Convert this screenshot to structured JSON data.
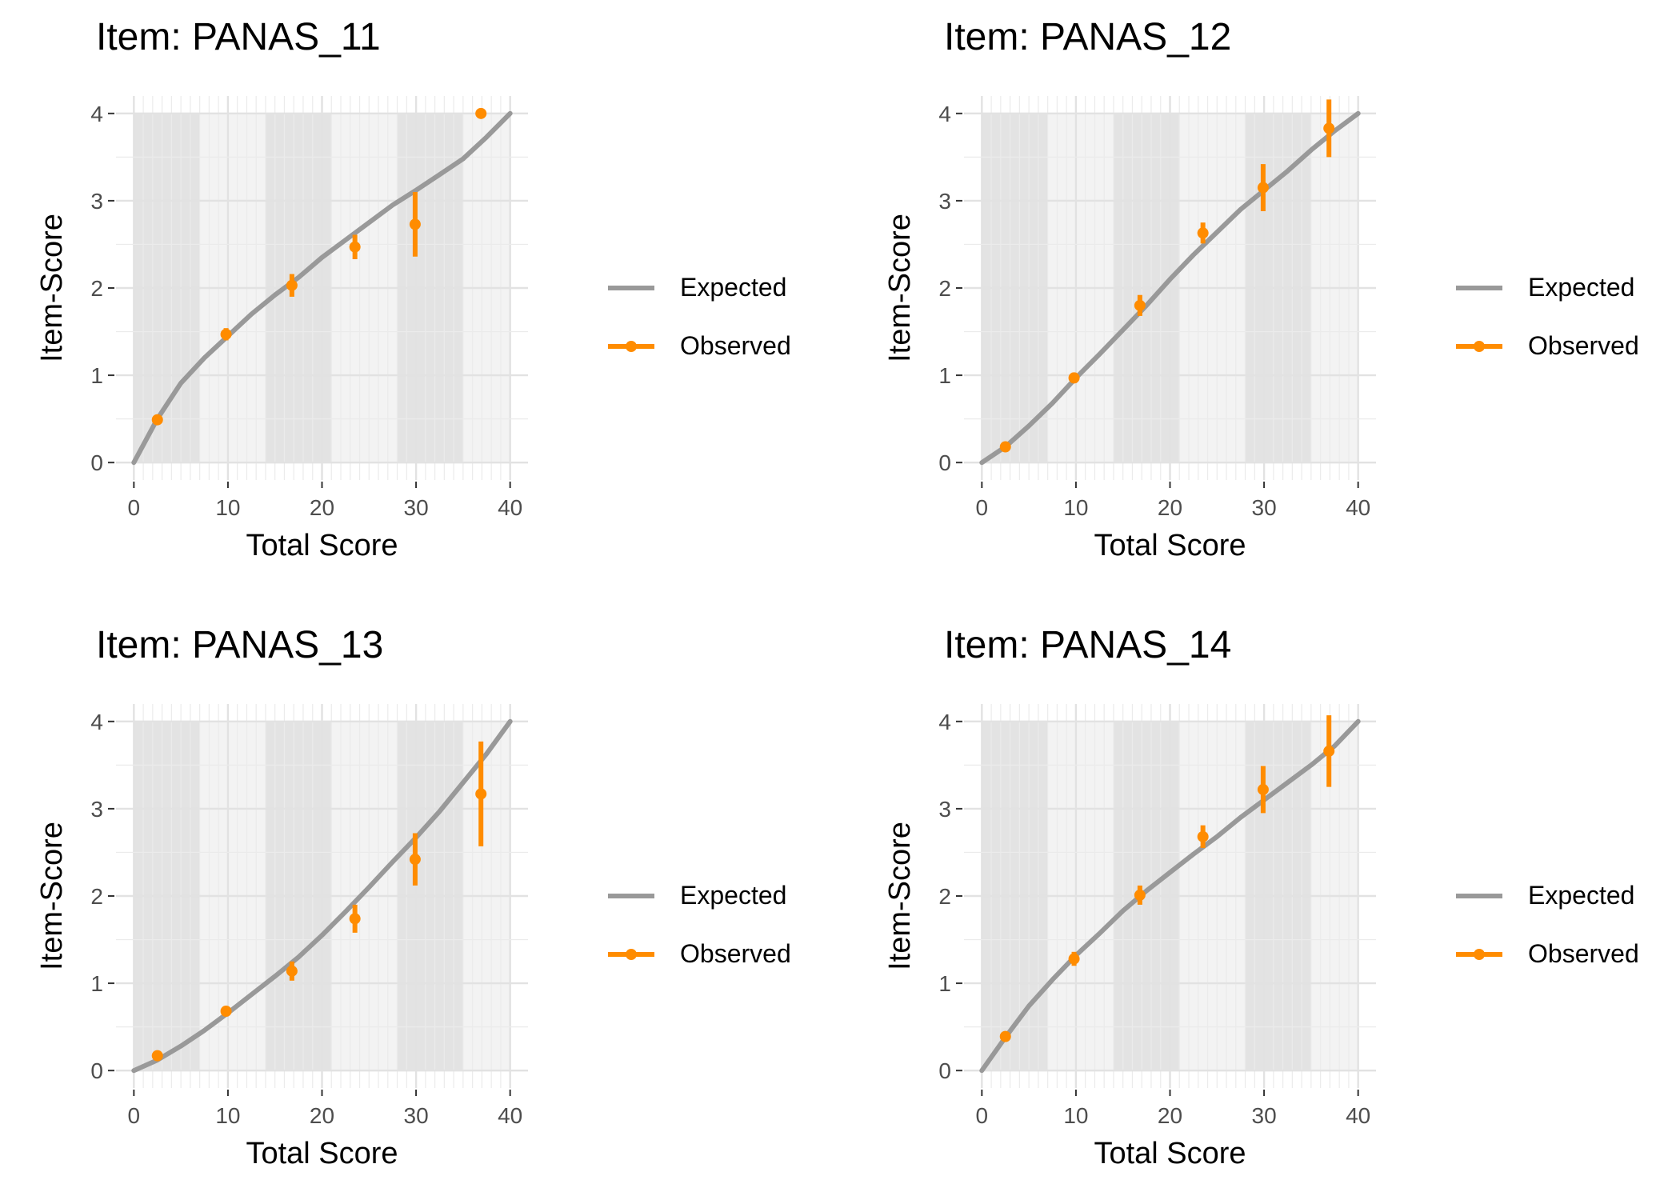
{
  "colors": {
    "expected": "#999999",
    "observed": "#FF8C00",
    "band_dark": "#E3E3E3",
    "band_light": "#F3F3F3",
    "grid": "#E6E6E6",
    "text": "#000000",
    "tick_text": "#4D4D4D"
  },
  "legend": {
    "expected_label": "Expected",
    "observed_label": "Observed"
  },
  "chart_data": [
    {
      "type": "line",
      "title": "Item: PANAS_11",
      "xlabel": "Total Score",
      "ylabel": "Item-Score",
      "xlim": [
        0,
        40
      ],
      "ylim": [
        0,
        4
      ],
      "xticks": [
        0,
        10,
        20,
        30,
        40
      ],
      "yticks": [
        0,
        1,
        2,
        3,
        4
      ],
      "bands": [
        [
          0,
          7
        ],
        [
          14,
          21
        ],
        [
          28,
          35
        ]
      ],
      "series": [
        {
          "name": "Expected",
          "kind": "line",
          "x": [
            0,
            2.5,
            5,
            7.5,
            10,
            12.5,
            15,
            17.5,
            20,
            22.5,
            25,
            27.5,
            30,
            32.5,
            35,
            37.5,
            40
          ],
          "y": [
            0,
            0.5,
            0.91,
            1.2,
            1.45,
            1.7,
            1.92,
            2.12,
            2.35,
            2.55,
            2.75,
            2.95,
            3.12,
            3.3,
            3.48,
            3.73,
            4.0
          ]
        },
        {
          "name": "Observed",
          "kind": "points",
          "x": [
            2.5,
            9.8,
            16.8,
            23.5,
            29.9,
            36.9
          ],
          "y": [
            0.49,
            1.47,
            2.03,
            2.47,
            2.73,
            4.0
          ],
          "lower": [
            0.46,
            1.4,
            1.9,
            2.33,
            2.36,
            4.0
          ],
          "upper": [
            0.52,
            1.54,
            2.16,
            2.61,
            3.1,
            4.0
          ]
        }
      ]
    },
    {
      "type": "line",
      "title": "Item: PANAS_12",
      "xlabel": "Total Score",
      "ylabel": "Item-Score",
      "xlim": [
        0,
        40
      ],
      "ylim": [
        0,
        4
      ],
      "xticks": [
        0,
        10,
        20,
        30,
        40
      ],
      "yticks": [
        0,
        1,
        2,
        3,
        4
      ],
      "bands": [
        [
          0,
          7
        ],
        [
          14,
          21
        ],
        [
          28,
          35
        ]
      ],
      "series": [
        {
          "name": "Expected",
          "kind": "line",
          "x": [
            0,
            2.5,
            5,
            7.5,
            10,
            12.5,
            15,
            17.5,
            20,
            22.5,
            25,
            27.5,
            30,
            32.5,
            35,
            37.5,
            40
          ],
          "y": [
            0,
            0.18,
            0.42,
            0.68,
            0.97,
            1.24,
            1.52,
            1.8,
            2.1,
            2.38,
            2.64,
            2.9,
            3.12,
            3.34,
            3.58,
            3.8,
            4.0
          ]
        },
        {
          "name": "Observed",
          "kind": "points",
          "x": [
            2.5,
            9.8,
            16.8,
            23.5,
            29.9,
            36.9
          ],
          "y": [
            0.18,
            0.97,
            1.8,
            2.63,
            3.15,
            3.83
          ],
          "lower": [
            0.15,
            0.91,
            1.68,
            2.51,
            2.88,
            3.5
          ],
          "upper": [
            0.21,
            1.03,
            1.92,
            2.75,
            3.42,
            4.16
          ]
        }
      ]
    },
    {
      "type": "line",
      "title": "Item: PANAS_13",
      "xlabel": "Total Score",
      "ylabel": "Item-Score",
      "xlim": [
        0,
        40
      ],
      "ylim": [
        0,
        4
      ],
      "xticks": [
        0,
        10,
        20,
        30,
        40
      ],
      "yticks": [
        0,
        1,
        2,
        3,
        4
      ],
      "bands": [
        [
          0,
          7
        ],
        [
          14,
          21
        ],
        [
          28,
          35
        ]
      ],
      "series": [
        {
          "name": "Expected",
          "kind": "line",
          "x": [
            0,
            2.5,
            5,
            7.5,
            10,
            12.5,
            15,
            17.5,
            20,
            22.5,
            25,
            27.5,
            30,
            32.5,
            35,
            37.5,
            40
          ],
          "y": [
            0,
            0.12,
            0.28,
            0.46,
            0.66,
            0.87,
            1.08,
            1.3,
            1.55,
            1.82,
            2.1,
            2.39,
            2.67,
            2.97,
            3.3,
            3.63,
            4.0
          ]
        },
        {
          "name": "Observed",
          "kind": "points",
          "x": [
            2.5,
            9.8,
            16.8,
            23.5,
            29.9,
            36.9
          ],
          "y": [
            0.17,
            0.68,
            1.14,
            1.74,
            2.42,
            3.17
          ],
          "lower": [
            0.14,
            0.62,
            1.03,
            1.58,
            2.12,
            2.57
          ],
          "upper": [
            0.2,
            0.74,
            1.25,
            1.9,
            2.72,
            3.77
          ]
        }
      ]
    },
    {
      "type": "line",
      "title": "Item: PANAS_14",
      "xlabel": "Total Score",
      "ylabel": "Item-Score",
      "xlim": [
        0,
        40
      ],
      "ylim": [
        0,
        4
      ],
      "xticks": [
        0,
        10,
        20,
        30,
        40
      ],
      "yticks": [
        0,
        1,
        2,
        3,
        4
      ],
      "bands": [
        [
          0,
          7
        ],
        [
          14,
          21
        ],
        [
          28,
          35
        ]
      ],
      "series": [
        {
          "name": "Expected",
          "kind": "line",
          "x": [
            0,
            2.5,
            5,
            7.5,
            10,
            12.5,
            15,
            17.5,
            20,
            22.5,
            25,
            27.5,
            30,
            32.5,
            35,
            37.5,
            40
          ],
          "y": [
            0,
            0.38,
            0.74,
            1.04,
            1.32,
            1.57,
            1.83,
            2.06,
            2.27,
            2.48,
            2.68,
            2.9,
            3.1,
            3.3,
            3.5,
            3.72,
            4.0
          ]
        },
        {
          "name": "Observed",
          "kind": "points",
          "x": [
            2.5,
            9.8,
            16.8,
            23.5,
            29.9,
            36.9
          ],
          "y": [
            0.39,
            1.28,
            2.01,
            2.68,
            3.22,
            3.66
          ],
          "lower": [
            0.36,
            1.2,
            1.9,
            2.55,
            2.95,
            3.25
          ],
          "upper": [
            0.42,
            1.36,
            2.12,
            2.81,
            3.49,
            4.07
          ]
        }
      ]
    }
  ]
}
